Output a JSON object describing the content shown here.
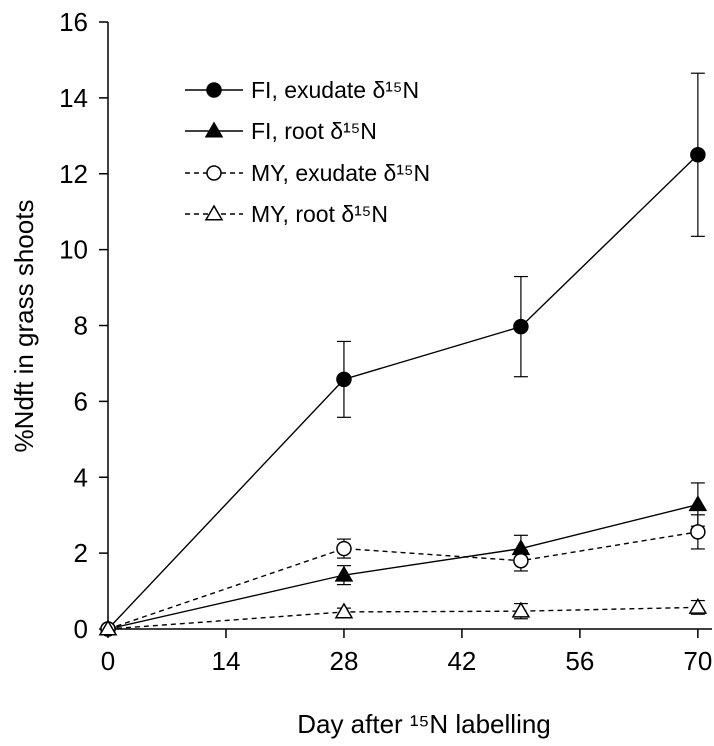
{
  "chart_data": {
    "type": "line",
    "title": "",
    "xlabel": "Day after ¹⁵N labelling",
    "ylabel": "%Ndft in grass shoots",
    "xlim": [
      0,
      75
    ],
    "ylim": [
      0,
      16
    ],
    "xticks": [
      0,
      14,
      28,
      42,
      56,
      70
    ],
    "yticks": [
      0,
      2,
      4,
      6,
      8,
      10,
      12,
      14,
      16
    ],
    "grid": false,
    "legend_position": "top-left",
    "series": [
      {
        "name": "FI, exudate δ¹⁵N",
        "x": [
          0,
          28,
          49,
          70
        ],
        "y": [
          0,
          6.58,
          7.97,
          12.5
        ],
        "err": [
          0,
          1.0,
          1.32,
          2.15
        ],
        "marker": "circle",
        "fill": "filled",
        "line": "solid"
      },
      {
        "name": "FI, root δ¹⁵N",
        "x": [
          0,
          28,
          49,
          70
        ],
        "y": [
          0,
          1.42,
          2.12,
          3.28
        ],
        "err": [
          0,
          0.25,
          0.35,
          0.57
        ],
        "marker": "triangle",
        "fill": "filled",
        "line": "solid"
      },
      {
        "name": "MY, exudate δ¹⁵N",
        "x": [
          0,
          28,
          49,
          70
        ],
        "y": [
          0,
          2.12,
          1.8,
          2.56
        ],
        "err": [
          0,
          0.25,
          0.27,
          0.45
        ],
        "marker": "circle",
        "fill": "open",
        "line": "dashed"
      },
      {
        "name": "MY, root δ¹⁵N",
        "x": [
          0,
          28,
          49,
          70
        ],
        "y": [
          0,
          0.45,
          0.47,
          0.57
        ],
        "err": [
          0,
          0.1,
          0.2,
          0.18
        ],
        "marker": "triangle",
        "fill": "open",
        "line": "dashed"
      }
    ]
  }
}
